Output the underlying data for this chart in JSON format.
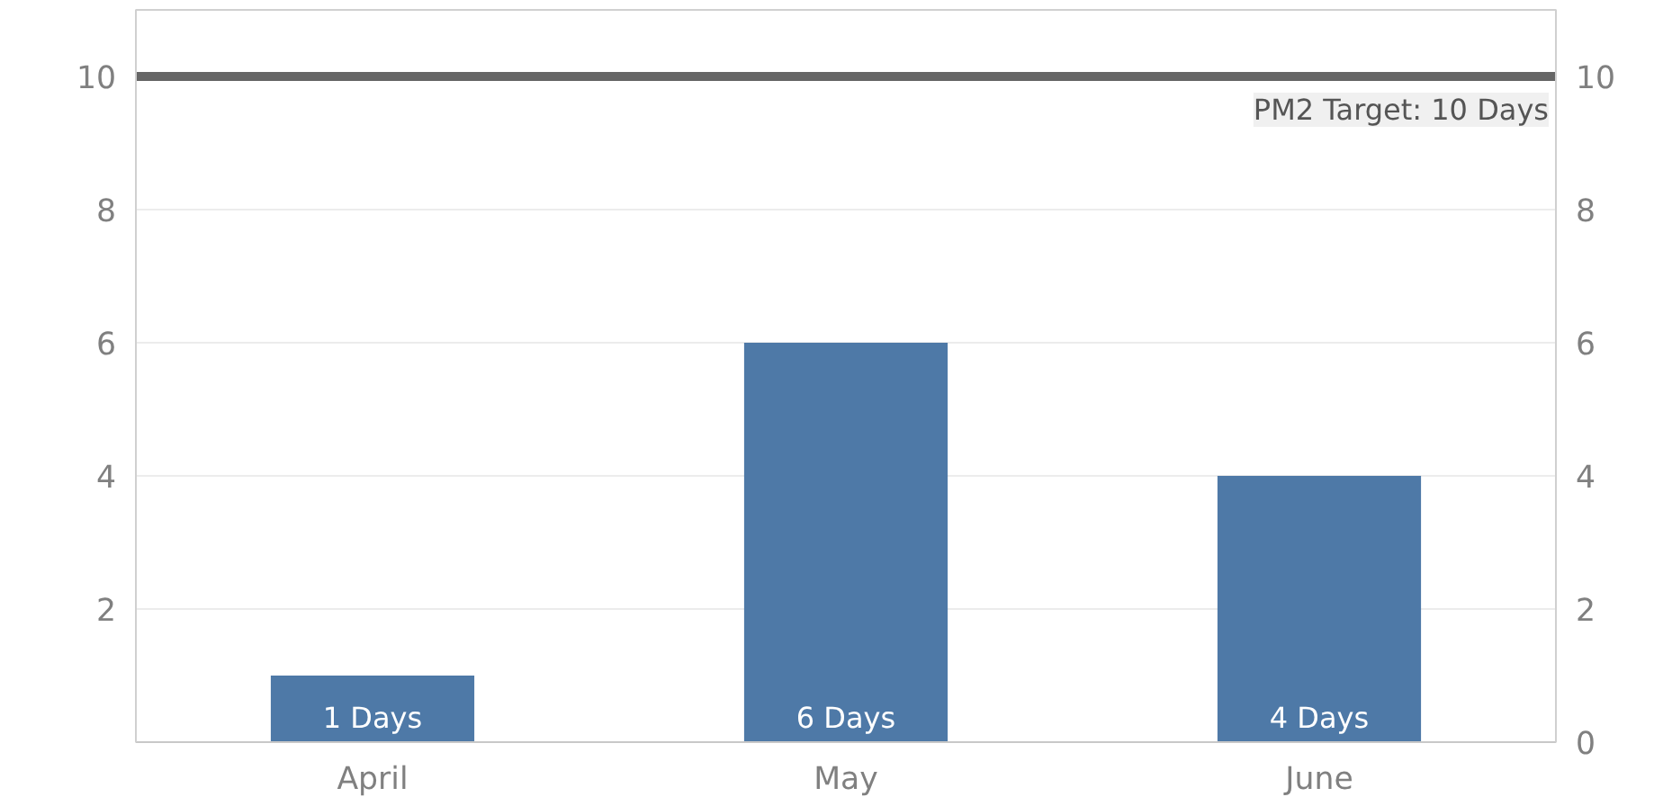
{
  "chart_data": {
    "type": "bar",
    "categories": [
      "April",
      "May",
      "June"
    ],
    "series": [
      {
        "color": "#4e79a7",
        "values": [
          1,
          6,
          4
        ],
        "value_labels": [
          "1 Days",
          "6 Days",
          "4 Days"
        ]
      }
    ],
    "ylim": [
      0,
      11
    ],
    "yticks": [
      2,
      4,
      6,
      8,
      10
    ],
    "y2lim": [
      0,
      11
    ],
    "y2ticks": [
      0,
      2,
      4,
      6,
      8,
      10
    ],
    "grid": "y",
    "ref_lines": [
      {
        "axis": "y",
        "value": 10,
        "label": "PM2 Target: 10 Days",
        "color": "#666666"
      }
    ]
  }
}
